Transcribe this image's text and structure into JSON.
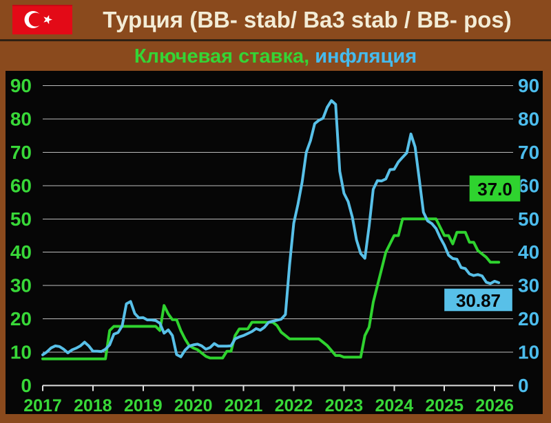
{
  "header": {
    "title": "Турция (BB- stab/ Ba3 stab / BB- pos)"
  },
  "subtitle": {
    "key_rate": "Ключевая ставка,",
    "inflation": " инфляция"
  },
  "colors": {
    "background": "#8a4a1d",
    "panel": "#060606",
    "grid": "#bdbdbd",
    "axis": "#e0e0e0",
    "axis_green": "#38d838",
    "axis_cyan": "#4cbcec",
    "flag_red": "#e30a17",
    "title_text": "#f3ecd6",
    "annotation_text": "#050505"
  },
  "chart_data": {
    "type": "line",
    "title": "Ключевая ставка, инфляция",
    "x": {
      "start_year": 2017,
      "frequency": "monthly",
      "tick_labels": [
        "2017",
        "2018",
        "2019",
        "2020",
        "2021",
        "2022",
        "2023",
        "2024",
        "2025",
        "2026"
      ]
    },
    "y": {
      "min": 0,
      "max": 90,
      "ticks": [
        0,
        10,
        20,
        30,
        40,
        50,
        60,
        70,
        80,
        90
      ],
      "left_axis_color": "#38d838",
      "right_axis_color": "#4cbcec"
    },
    "grid": true,
    "legend_position": "none",
    "series": [
      {
        "name": "Ключевая ставка",
        "color": "#2fd32f",
        "last_value_label": "37.0",
        "values": [
          8,
          8,
          8,
          8,
          8,
          8,
          8,
          8,
          8,
          8,
          8,
          8,
          8,
          8,
          8,
          8,
          16.5,
          17.75,
          17.75,
          17.75,
          17.75,
          17.75,
          17.75,
          17.75,
          17.75,
          17.75,
          17.75,
          17.75,
          16.5,
          24,
          21.5,
          19.75,
          19.75,
          16.5,
          14,
          12,
          11.25,
          10.75,
          9.75,
          8.75,
          8.25,
          8.25,
          8.25,
          8.25,
          10.25,
          10.25,
          15,
          17,
          17,
          17,
          19,
          19,
          19,
          19,
          19,
          19,
          18,
          16,
          15,
          14,
          14,
          14,
          14,
          14,
          14,
          14,
          14,
          13,
          12,
          10.5,
          9,
          9,
          8.5,
          8.5,
          8.5,
          8.5,
          8.5,
          15,
          17.5,
          25,
          30,
          35,
          40,
          42.5,
          45,
          45,
          50,
          50,
          50,
          50,
          50,
          50,
          50,
          50,
          50,
          47.5,
          45,
          45,
          42.5,
          46,
          46,
          46,
          43,
          43,
          40.5,
          39.5,
          38.5,
          37,
          37,
          37
        ]
      },
      {
        "name": "Инфляция",
        "color": "#58c0e8",
        "last_value_label": "30.87",
        "values": [
          9.2,
          10.1,
          11.3,
          11.9,
          11.7,
          10.9,
          9.8,
          10.7,
          11.2,
          11.9,
          13,
          11.9,
          10.3,
          10.3,
          10.2,
          10.9,
          12.2,
          15.4,
          15.9,
          17.9,
          24.5,
          25.2,
          21.6,
          20.3,
          20.4,
          19.7,
          19.7,
          19.5,
          18.7,
          15.7,
          16.7,
          15,
          9.3,
          8.6,
          10.6,
          11.8,
          12.2,
          12.4,
          11.9,
          10.9,
          11.4,
          12.6,
          11.8,
          11.8,
          11.8,
          11.9,
          14,
          14.6,
          15,
          15.6,
          16.2,
          17.1,
          16.6,
          17.5,
          19,
          19.3,
          19.6,
          19.9,
          21.3,
          36.1,
          48.7,
          54.4,
          61.1,
          70,
          73.5,
          78.6,
          79.6,
          80.2,
          83.5,
          85.5,
          84.4,
          64.3,
          57.7,
          55.2,
          50.5,
          43.7,
          39.6,
          38.2,
          47.8,
          58.9,
          61.5,
          61.4,
          62,
          64.8,
          64.9,
          67.1,
          68.5,
          69.8,
          75.5,
          71.6,
          61.8,
          52,
          49.4,
          48.6,
          47.1,
          44.4,
          42.1,
          39.1,
          38.1,
          37.9,
          35.4,
          35.1,
          33.5,
          33,
          33.3,
          32.9,
          31,
          30.6,
          31.3,
          30.87
        ]
      }
    ]
  }
}
